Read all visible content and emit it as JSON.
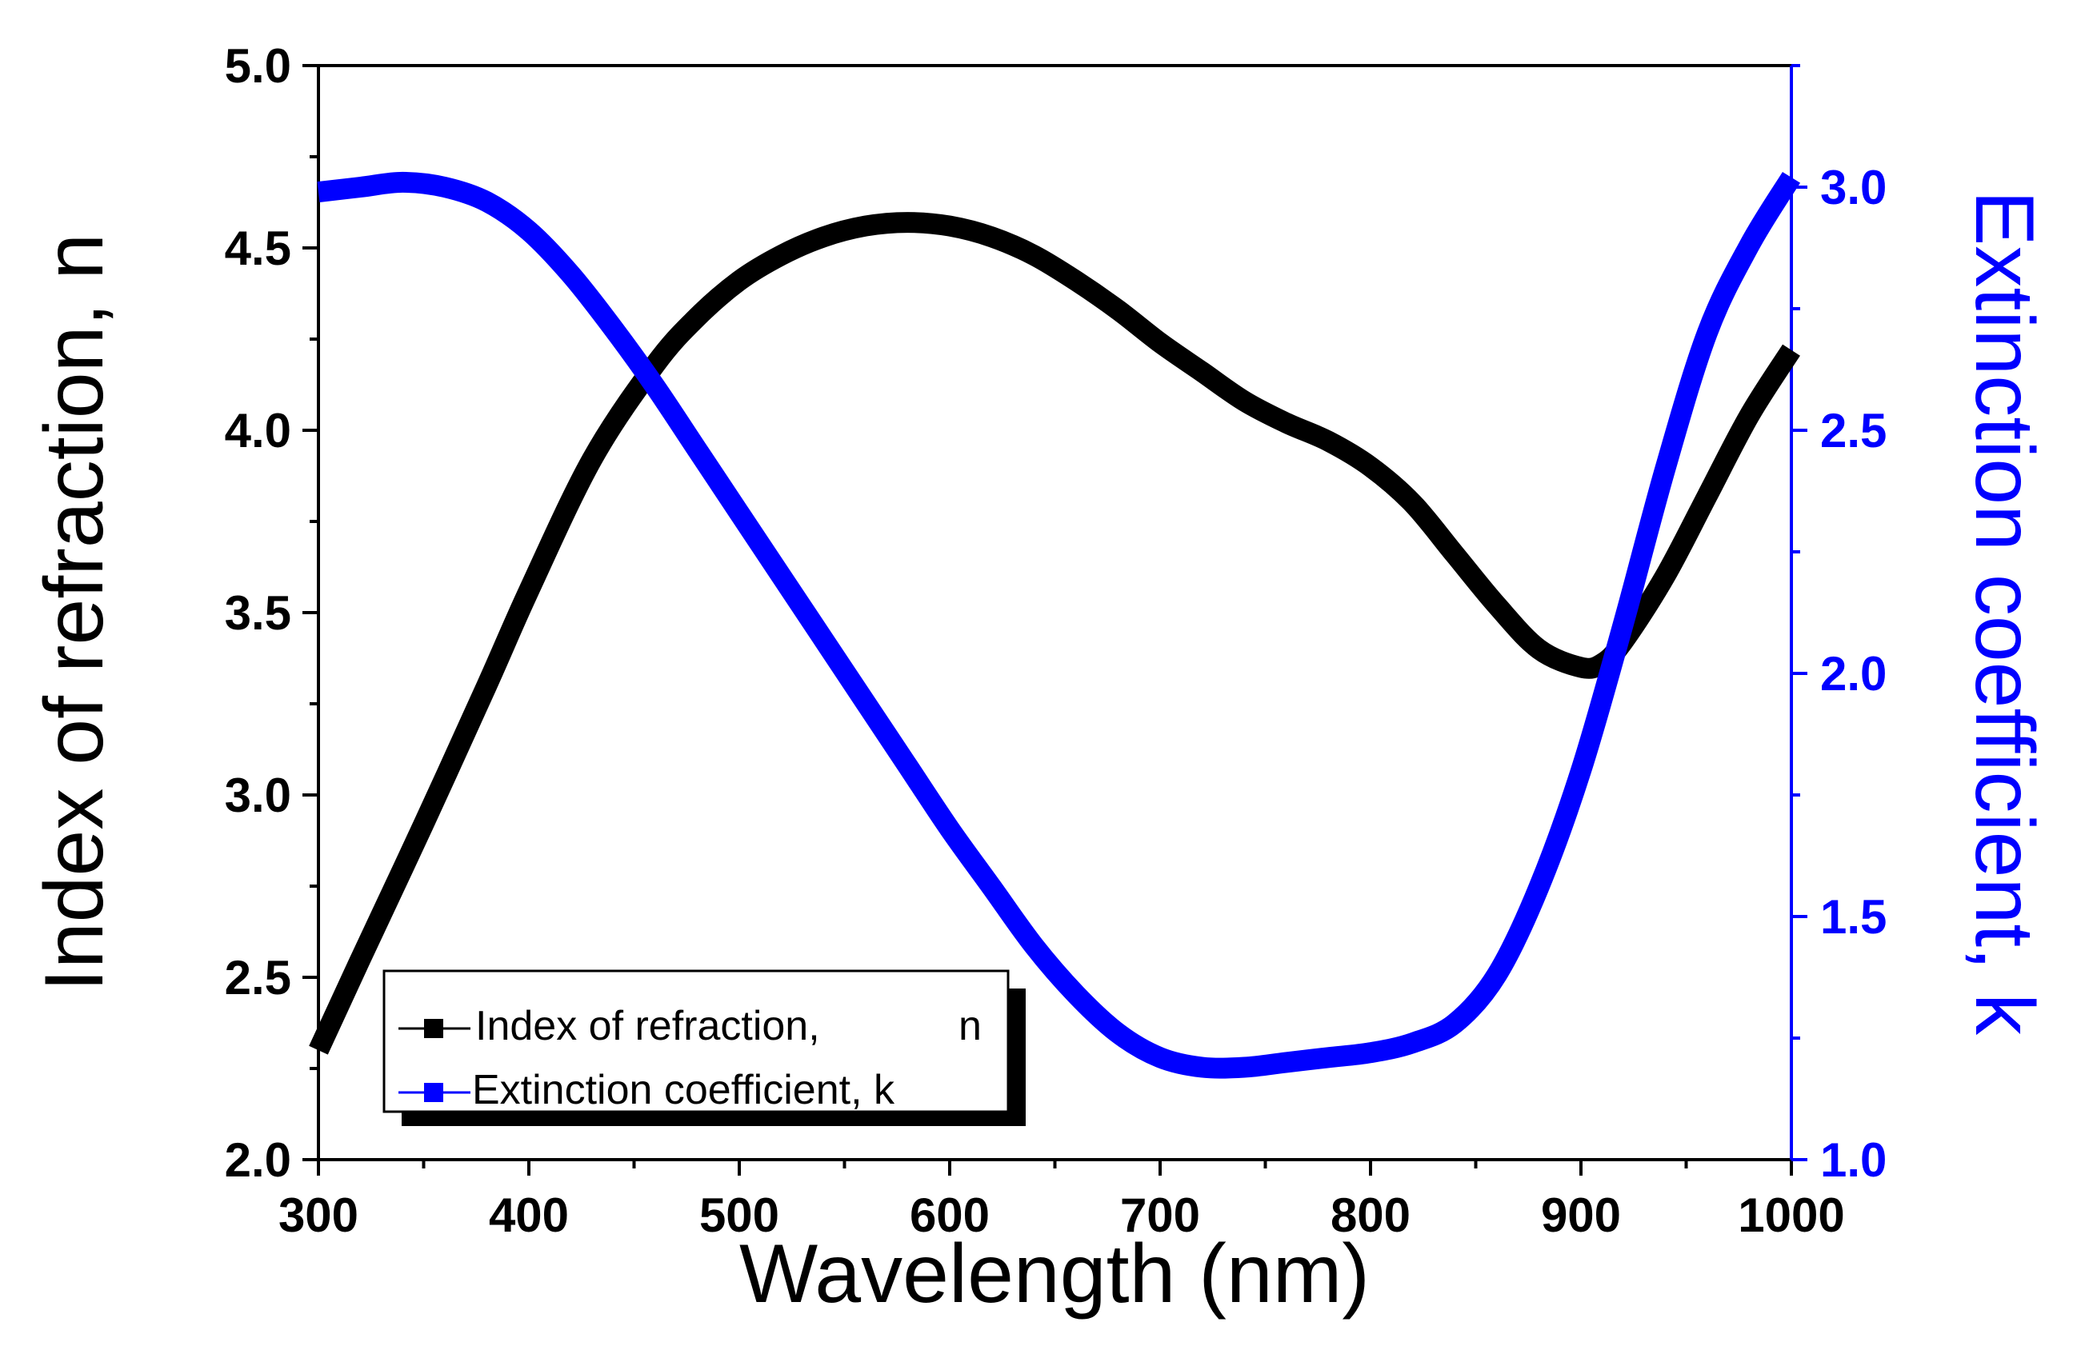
{
  "chart_data": {
    "type": "line",
    "x_axis": {
      "label": "Wavelength (nm)",
      "range": [
        300,
        1000
      ],
      "ticks": [
        "300",
        "400",
        "500",
        "600",
        "700",
        "800",
        "900",
        "1000"
      ],
      "tick_values": [
        300,
        400,
        500,
        600,
        700,
        800,
        900,
        1000
      ]
    },
    "y_left": {
      "label": "Index of refraction, n",
      "range": [
        2.0,
        5.0
      ],
      "ticks": [
        "2.0",
        "2.5",
        "3.0",
        "3.5",
        "4.0",
        "4.5",
        "5.0"
      ],
      "tick_values": [
        2.0,
        2.5,
        3.0,
        3.5,
        4.0,
        4.5,
        5.0
      ]
    },
    "y_right": {
      "label": "Extinction coefficient, k",
      "range": [
        1.0,
        3.25
      ],
      "ticks": [
        "1.0",
        "1.5",
        "2.0",
        "2.5",
        "3.0"
      ],
      "tick_values": [
        1.0,
        1.5,
        2.0,
        2.5,
        3.0
      ]
    },
    "legend": {
      "placement": "bottom-left",
      "entries": [
        {
          "text_part1": "Index of refraction,",
          "text_part2": "n"
        },
        {
          "text": "Extinction coefficient, k"
        }
      ]
    },
    "series": [
      {
        "name": "Index of refraction, n",
        "axis": "left",
        "color": "#000000",
        "x": [
          300,
          320,
          350,
          380,
          400,
          430,
          460,
          480,
          500,
          520,
          540,
          560,
          580,
          600,
          620,
          640,
          660,
          680,
          700,
          720,
          740,
          760,
          780,
          800,
          820,
          840,
          860,
          880,
          900,
          910,
          920,
          940,
          960,
          980,
          1000
        ],
        "values": [
          2.3,
          2.55,
          2.92,
          3.3,
          3.56,
          3.92,
          4.18,
          4.31,
          4.41,
          4.48,
          4.53,
          4.56,
          4.57,
          4.56,
          4.53,
          4.48,
          4.41,
          4.33,
          4.24,
          4.16,
          4.08,
          4.02,
          3.97,
          3.9,
          3.8,
          3.66,
          3.52,
          3.4,
          3.35,
          3.36,
          3.42,
          3.6,
          3.82,
          4.04,
          4.22
        ]
      },
      {
        "name": "Extinction coefficient, k",
        "axis": "right",
        "color": "#0000ff",
        "x": [
          300,
          320,
          340,
          360,
          380,
          400,
          420,
          440,
          460,
          480,
          500,
          520,
          540,
          560,
          580,
          600,
          620,
          640,
          660,
          680,
          700,
          720,
          740,
          760,
          780,
          800,
          820,
          840,
          860,
          880,
          900,
          920,
          940,
          960,
          980,
          1000
        ],
        "values": [
          2.99,
          3.0,
          3.01,
          3.0,
          2.97,
          2.91,
          2.82,
          2.71,
          2.59,
          2.46,
          2.33,
          2.2,
          2.07,
          1.94,
          1.81,
          1.68,
          1.56,
          1.44,
          1.34,
          1.26,
          1.21,
          1.19,
          1.19,
          1.2,
          1.21,
          1.22,
          1.24,
          1.28,
          1.38,
          1.56,
          1.8,
          2.1,
          2.42,
          2.7,
          2.88,
          3.02
        ]
      }
    ]
  }
}
